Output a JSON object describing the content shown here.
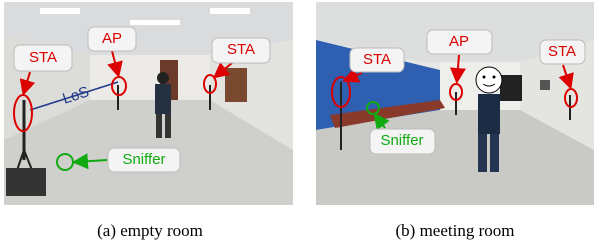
{
  "figures": [
    {
      "caption": "(a) empty room",
      "labels": [
        "STA",
        "AP",
        "STA",
        "LoS",
        "Sniffer"
      ]
    },
    {
      "caption": "(b) meeting room",
      "labels": [
        "STA",
        "AP",
        "STA",
        "Sniffer"
      ]
    }
  ]
}
